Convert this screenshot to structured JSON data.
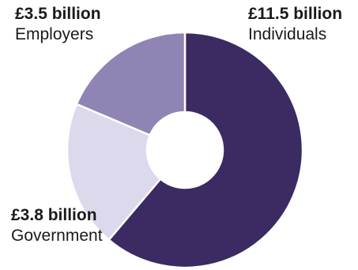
{
  "chart_data": {
    "type": "pie",
    "style": "donut",
    "colors": [
      "#3c2a63",
      "#dcd9ec",
      "#8f84b3"
    ],
    "slices": [
      {
        "label": "Individuals",
        "value": 11.5,
        "value_label": "£11.5 billion"
      },
      {
        "label": "Government",
        "value": 3.8,
        "value_label": "£3.8 billion"
      },
      {
        "label": "Employers",
        "value": 3.5,
        "value_label": "£3.5 billion"
      }
    ]
  }
}
